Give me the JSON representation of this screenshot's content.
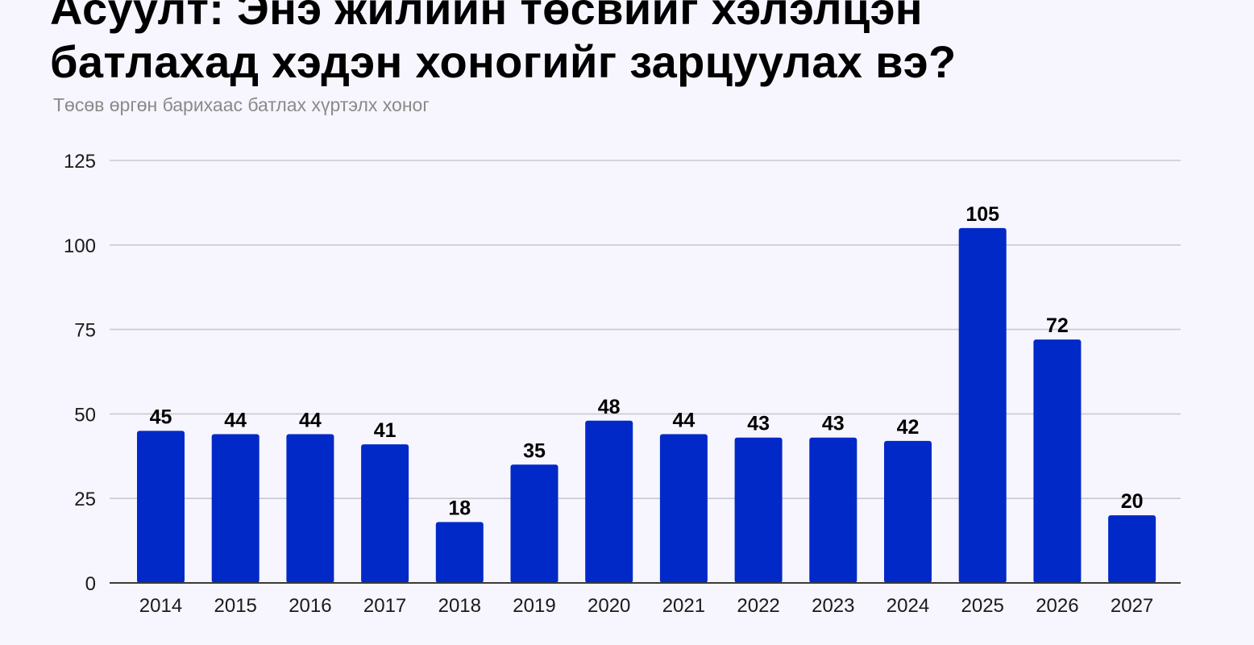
{
  "title_lines": [
    "Асуулт: Энэ жилийн төсвийг хэлэлцэн",
    "батлахад хэдэн хоногийг зарцуулах вэ?"
  ],
  "subtitle": "Төсөв өргөн барихаас батлах хүртэлх хоног",
  "colors": {
    "bar": "#0029c8",
    "grid": "#c9c9cf",
    "axis": "#3a3a3a",
    "background": "#f7f5fd"
  },
  "chart_data": {
    "type": "bar",
    "categories": [
      "2014",
      "2015",
      "2016",
      "2017",
      "2018",
      "2019",
      "2020",
      "2021",
      "2022",
      "2023",
      "2024",
      "2025",
      "2026",
      "2027"
    ],
    "values": [
      45,
      44,
      44,
      41,
      18,
      35,
      48,
      44,
      43,
      43,
      42,
      105,
      72,
      20
    ],
    "data_labels": [
      "45",
      "44",
      "44",
      "41",
      "18",
      "35",
      "48",
      "44",
      "43",
      "43",
      "42",
      "105",
      "72",
      "20"
    ],
    "yticks": [
      0,
      25,
      50,
      75,
      100,
      125
    ],
    "ytick_labels": [
      "0",
      "25",
      "50",
      "75",
      "100",
      "125"
    ],
    "ylim": [
      0,
      125
    ],
    "grid": true,
    "legend": "none"
  }
}
